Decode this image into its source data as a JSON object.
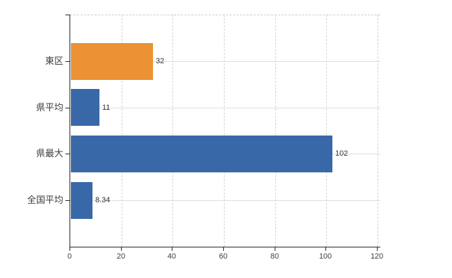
{
  "chart_data": {
    "type": "bar",
    "orientation": "horizontal",
    "categories": [
      "東区",
      "県平均",
      "県最大",
      "全国平均"
    ],
    "values": [
      32,
      11,
      102,
      8.34
    ],
    "value_labels": [
      "32",
      "11",
      "102",
      "8.34"
    ],
    "series": [
      {
        "name": "値",
        "values": [
          32,
          11,
          102,
          8.34
        ],
        "colors": [
          "#eb9234",
          "#3968a8",
          "#3968a8",
          "#3968a8"
        ]
      }
    ],
    "highlighted_category": "東区",
    "x_ticks": [
      "0",
      "20",
      "40",
      "60",
      "80",
      "100",
      "120"
    ],
    "x_tick_values": [
      0,
      20,
      40,
      60,
      80,
      100,
      120
    ],
    "xlim": [
      0,
      120
    ],
    "xlabel": "",
    "ylabel": "",
    "title": "",
    "legend": "none",
    "grid": "on",
    "gridline_color": "#dcdfdc",
    "axis_color": "#262626",
    "bar_color_highlight": "#eb9234",
    "bar_color_default": "#3968a8"
  }
}
